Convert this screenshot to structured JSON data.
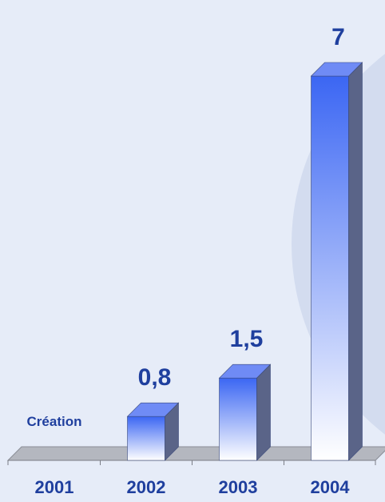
{
  "chart_data": {
    "type": "bar",
    "categories": [
      "2001",
      "2002",
      "2003",
      "2004"
    ],
    "values": [
      0,
      0.8,
      1.5,
      7
    ],
    "data_labels": [
      "",
      "0,8",
      "1,5",
      "7"
    ],
    "annotations": [
      {
        "category": "2001",
        "text": "Création"
      }
    ],
    "title": "",
    "xlabel": "",
    "ylabel": "",
    "ylim": [
      0,
      7
    ],
    "grid": false,
    "legend": "none"
  },
  "colors": {
    "background": "#e6ecf8",
    "backdrop_circle": "#d3dcef",
    "bar_top": "#3b66f3",
    "bar_bottom": "#ffffff",
    "bar_side": "#5a6488",
    "bar_cap": "#6f8bf5",
    "floor": "#b4b7bf",
    "text": "#1f3f9e"
  }
}
